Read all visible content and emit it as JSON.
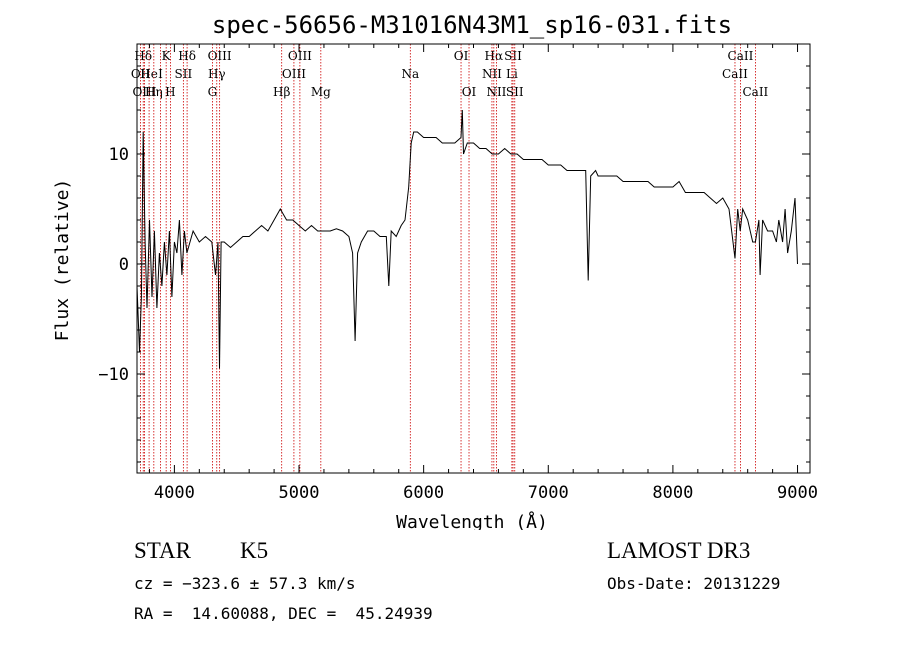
{
  "chart_data": {
    "type": "line",
    "title": "spec-56656-M31016N43M1_sp16-031.fits",
    "xlabel": "Wavelength (Å)",
    "ylabel": "Flux (relative)",
    "xlim": [
      3700,
      9100
    ],
    "ylim": [
      -19,
      20
    ],
    "x_ticks": [
      4000,
      5000,
      6000,
      7000,
      8000,
      9000
    ],
    "x_tick_labels": [
      "4000",
      "5000",
      "6000",
      "7000",
      "8000",
      "9000"
    ],
    "y_ticks": [
      -10,
      0,
      10
    ],
    "y_tick_labels": [
      "−10",
      "0",
      "10"
    ],
    "grid": false,
    "series": [
      {
        "name": "spectrum",
        "color": "#000000",
        "points": [
          [
            3700,
            -2
          ],
          [
            3720,
            -8
          ],
          [
            3735,
            -3
          ],
          [
            3750,
            12
          ],
          [
            3765,
            2
          ],
          [
            3780,
            -4
          ],
          [
            3800,
            4
          ],
          [
            3820,
            -3
          ],
          [
            3840,
            3
          ],
          [
            3860,
            -4
          ],
          [
            3880,
            1
          ],
          [
            3900,
            -2
          ],
          [
            3920,
            2
          ],
          [
            3940,
            -1
          ],
          [
            3960,
            3
          ],
          [
            3980,
            -3
          ],
          [
            4000,
            2
          ],
          [
            4020,
            1
          ],
          [
            4040,
            4
          ],
          [
            4060,
            -1
          ],
          [
            4080,
            3
          ],
          [
            4100,
            1
          ],
          [
            4150,
            3
          ],
          [
            4200,
            2
          ],
          [
            4250,
            2.5
          ],
          [
            4300,
            2
          ],
          [
            4330,
            -1
          ],
          [
            4350,
            2
          ],
          [
            4362,
            -9.5
          ],
          [
            4375,
            2
          ],
          [
            4400,
            2
          ],
          [
            4450,
            1.5
          ],
          [
            4500,
            2
          ],
          [
            4550,
            2.5
          ],
          [
            4600,
            2.5
          ],
          [
            4650,
            3
          ],
          [
            4700,
            3.5
          ],
          [
            4750,
            3
          ],
          [
            4800,
            4
          ],
          [
            4850,
            5
          ],
          [
            4900,
            4
          ],
          [
            4950,
            4
          ],
          [
            5000,
            3.5
          ],
          [
            5050,
            3
          ],
          [
            5100,
            3.5
          ],
          [
            5150,
            3
          ],
          [
            5200,
            3
          ],
          [
            5250,
            3
          ],
          [
            5300,
            3.2
          ],
          [
            5350,
            3
          ],
          [
            5400,
            2.5
          ],
          [
            5430,
            1
          ],
          [
            5450,
            -7
          ],
          [
            5470,
            1
          ],
          [
            5500,
            2
          ],
          [
            5550,
            3
          ],
          [
            5600,
            3
          ],
          [
            5650,
            2.5
          ],
          [
            5700,
            2.5
          ],
          [
            5720,
            -2
          ],
          [
            5740,
            3
          ],
          [
            5780,
            2.5
          ],
          [
            5820,
            3.5
          ],
          [
            5850,
            4
          ],
          [
            5880,
            7
          ],
          [
            5900,
            11
          ],
          [
            5920,
            12
          ],
          [
            5950,
            12
          ],
          [
            6000,
            11.5
          ],
          [
            6050,
            11.5
          ],
          [
            6100,
            11.5
          ],
          [
            6150,
            11
          ],
          [
            6200,
            11
          ],
          [
            6250,
            11
          ],
          [
            6300,
            11.5
          ],
          [
            6310,
            14
          ],
          [
            6320,
            10
          ],
          [
            6350,
            11
          ],
          [
            6400,
            11
          ],
          [
            6450,
            10.5
          ],
          [
            6500,
            10.5
          ],
          [
            6550,
            10
          ],
          [
            6600,
            10
          ],
          [
            6650,
            10.5
          ],
          [
            6700,
            10
          ],
          [
            6750,
            10
          ],
          [
            6800,
            9.5
          ],
          [
            6850,
            9.5
          ],
          [
            6900,
            9.5
          ],
          [
            6950,
            9.5
          ],
          [
            7000,
            9
          ],
          [
            7050,
            9
          ],
          [
            7100,
            9
          ],
          [
            7150,
            8.5
          ],
          [
            7200,
            8.5
          ],
          [
            7250,
            8.5
          ],
          [
            7300,
            8.5
          ],
          [
            7320,
            -1.5
          ],
          [
            7340,
            8
          ],
          [
            7380,
            8.5
          ],
          [
            7400,
            8
          ],
          [
            7450,
            8
          ],
          [
            7500,
            8
          ],
          [
            7550,
            8
          ],
          [
            7600,
            7.5
          ],
          [
            7650,
            7.5
          ],
          [
            7700,
            7.5
          ],
          [
            7750,
            7.5
          ],
          [
            7800,
            7.5
          ],
          [
            7850,
            7
          ],
          [
            7900,
            7
          ],
          [
            7950,
            7
          ],
          [
            8000,
            7
          ],
          [
            8050,
            7.5
          ],
          [
            8100,
            6.5
          ],
          [
            8150,
            6.5
          ],
          [
            8200,
            6.5
          ],
          [
            8250,
            6.5
          ],
          [
            8300,
            6
          ],
          [
            8350,
            5.5
          ],
          [
            8400,
            6
          ],
          [
            8450,
            5
          ],
          [
            8498,
            0.5
          ],
          [
            8520,
            5
          ],
          [
            8540,
            3
          ],
          [
            8560,
            5
          ],
          [
            8600,
            4
          ],
          [
            8640,
            2
          ],
          [
            8662,
            2
          ],
          [
            8690,
            4
          ],
          [
            8700,
            -1
          ],
          [
            8720,
            4
          ],
          [
            8760,
            3
          ],
          [
            8800,
            3
          ],
          [
            8830,
            2
          ],
          [
            8850,
            4
          ],
          [
            8880,
            2
          ],
          [
            8900,
            5
          ],
          [
            8920,
            1
          ],
          [
            8950,
            3
          ],
          [
            8980,
            6
          ],
          [
            9000,
            0
          ]
        ]
      }
    ],
    "line_markers": [
      {
        "label": "Hδ",
        "wl": 3750,
        "pos": "top",
        "row": 1
      },
      {
        "label": "OII",
        "wl": 3728,
        "pos": "top",
        "row": 2
      },
      {
        "label": "OIII",
        "wl": 3760,
        "pos": "top",
        "row": 3
      },
      {
        "label": "He",
        "wl": 3797,
        "pos": "top",
        "row": 2
      },
      {
        "label": "Hη",
        "wl": 3835,
        "pos": "top",
        "row": 3
      },
      {
        "label": "K",
        "wl": 3934,
        "pos": "top",
        "row": 1
      },
      {
        "label": "H",
        "wl": 3968,
        "pos": "top",
        "row": 3
      },
      {
        "label": "I",
        "wl": 3889,
        "pos": "top",
        "row": 2
      },
      {
        "label": "SII",
        "wl": 4072,
        "pos": "top",
        "row": 2
      },
      {
        "label": "Hδ",
        "wl": 4102,
        "pos": "top",
        "row": 1
      },
      {
        "label": "OIII",
        "wl": 4363,
        "pos": "top",
        "row": 1
      },
      {
        "label": "Hγ",
        "wl": 4340,
        "pos": "top",
        "row": 2
      },
      {
        "label": "G",
        "wl": 4305,
        "pos": "top",
        "row": 3
      },
      {
        "label": "Hβ",
        "wl": 4861,
        "pos": "top",
        "row": 3
      },
      {
        "label": "OIII",
        "wl": 5007,
        "pos": "top",
        "row": 1
      },
      {
        "label": "OIII",
        "wl": 4959,
        "pos": "top",
        "row": 2
      },
      {
        "label": "Mg",
        "wl": 5175,
        "pos": "top",
        "row": 3
      },
      {
        "label": "Na",
        "wl": 5893,
        "pos": "top",
        "row": 2
      },
      {
        "label": "OI",
        "wl": 6300,
        "pos": "top",
        "row": 1
      },
      {
        "label": "OI",
        "wl": 6364,
        "pos": "top",
        "row": 3
      },
      {
        "label": "Hα",
        "wl": 6563,
        "pos": "top",
        "row": 1
      },
      {
        "label": "NII",
        "wl": 6548,
        "pos": "top",
        "row": 2
      },
      {
        "label": "NII",
        "wl": 6584,
        "pos": "top",
        "row": 3
      },
      {
        "label": "SII",
        "wl": 6717,
        "pos": "top",
        "row": 1
      },
      {
        "label": "Li",
        "wl": 6708,
        "pos": "top",
        "row": 2
      },
      {
        "label": "SII",
        "wl": 6731,
        "pos": "top",
        "row": 3
      },
      {
        "label": "CaII",
        "wl": 8542,
        "pos": "top",
        "row": 1
      },
      {
        "label": "CaII",
        "wl": 8498,
        "pos": "top",
        "row": 2
      },
      {
        "label": "CaII",
        "wl": 8662,
        "pos": "top",
        "row": 3
      }
    ]
  },
  "info": {
    "object_class": "STAR",
    "subclass": "K5",
    "survey": "LAMOST DR3",
    "cz": "cz = −323.6 ± 57.3 km/s",
    "obs_date": "Obs-Date: 20131229",
    "radec": "RA =  14.60088, DEC =  45.24939"
  },
  "colors": {
    "axis": "#000000",
    "spectrum": "#000000",
    "marker_line": "#cc0000"
  }
}
